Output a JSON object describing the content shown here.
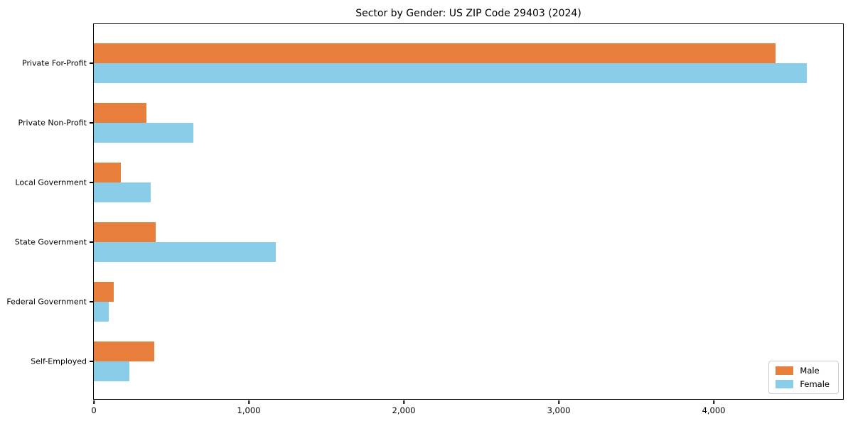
{
  "chart_data": {
    "type": "bar",
    "orientation": "horizontal",
    "title": "Sector by Gender: US ZIP Code 29403 (2024)",
    "categories": [
      "Private For-Profit",
      "Private Non-Profit",
      "Local Government",
      "State Government",
      "Federal Government",
      "Self-Employed"
    ],
    "series": [
      {
        "name": "Male",
        "color": "#e87e3b",
        "values": [
          4400,
          340,
          175,
          400,
          130,
          390
        ]
      },
      {
        "name": "Female",
        "color": "#89cde8",
        "values": [
          4600,
          640,
          365,
          1175,
          95,
          230
        ]
      }
    ],
    "xlabel": "",
    "ylabel": "",
    "xlim": [
      0,
      4830
    ],
    "x_ticks": [
      0,
      1000,
      2000,
      3000,
      4000
    ],
    "x_tick_labels": [
      "0",
      "1,000",
      "2,000",
      "3,000",
      "4,000"
    ],
    "grid": false,
    "legend": {
      "position": "lower right",
      "entries": [
        "Male",
        "Female"
      ]
    }
  }
}
